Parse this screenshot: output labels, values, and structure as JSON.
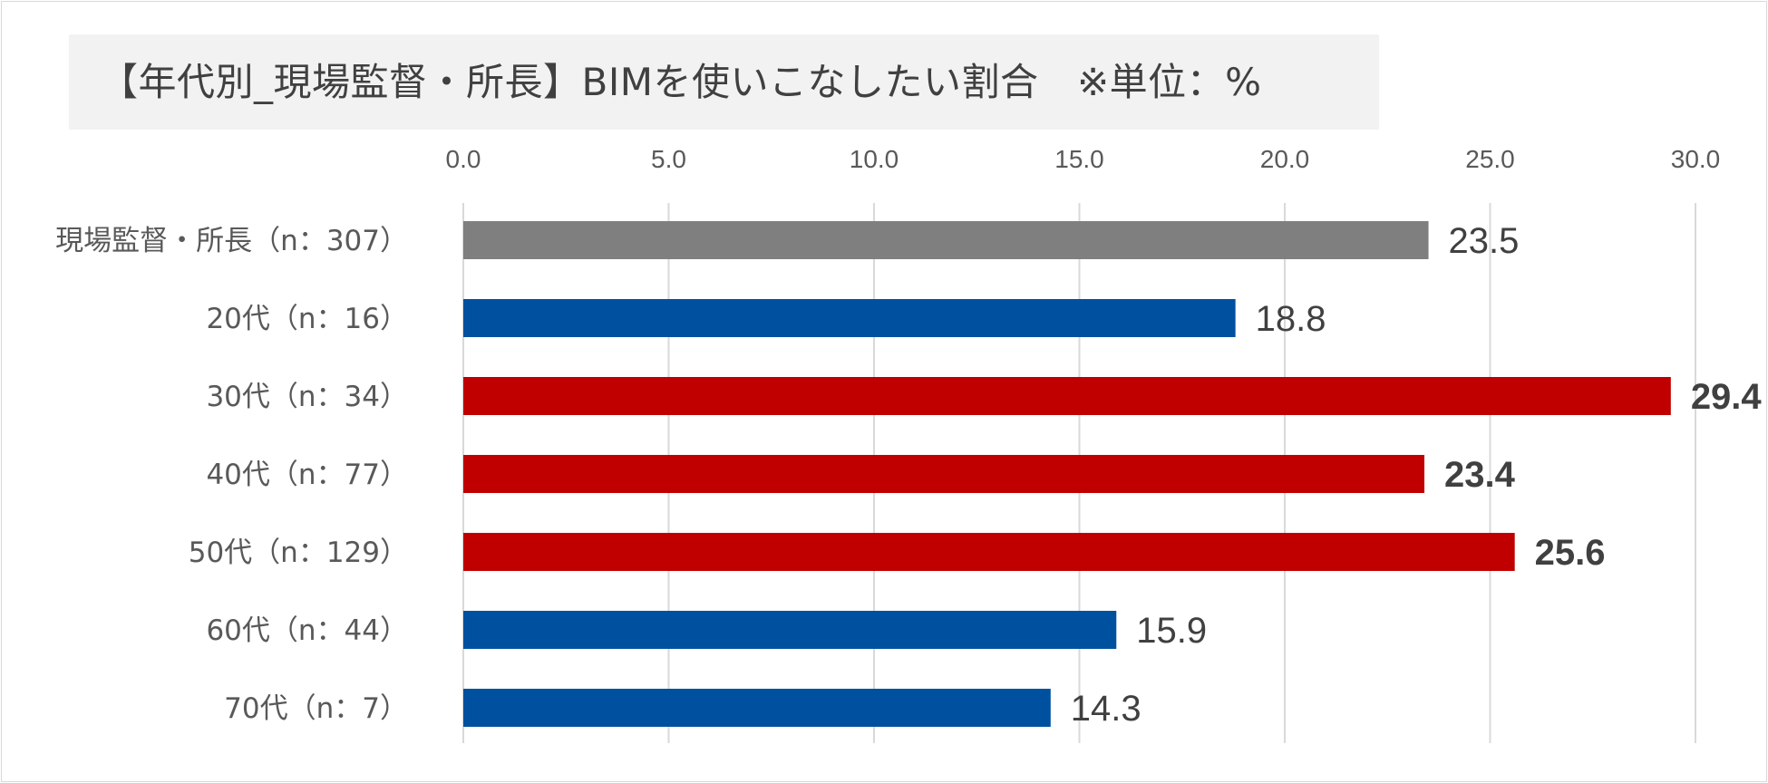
{
  "title": "【年代別_現場監督・所長】BIMを使いこなしたい割合　※単位：%",
  "chart_data": {
    "type": "bar",
    "orientation": "horizontal",
    "title": "【年代別_現場監督・所長】BIMを使いこなしたい割合　※単位：%",
    "categories": [
      "現場監督・所長（n：307）",
      "20代（n：16）",
      "30代（n：34）",
      "40代（n：77）",
      "50代（n：129）",
      "60代（n：44）",
      "70代（n：7）"
    ],
    "values": [
      23.5,
      18.8,
      29.4,
      23.4,
      25.6,
      15.9,
      14.3
    ],
    "value_labels": [
      "23.5",
      "18.8",
      "29.4",
      "23.4",
      "25.6",
      "15.9",
      "14.3"
    ],
    "bar_colors": [
      "#7f7f7f",
      "#0050a0",
      "#c00000",
      "#c00000",
      "#c00000",
      "#0050a0",
      "#0050a0"
    ],
    "label_colors": [
      "#404040",
      "#404040",
      "#c00000",
      "#c00000",
      "#c00000",
      "#404040",
      "#404040"
    ],
    "label_bold": [
      false,
      false,
      true,
      true,
      true,
      false,
      false
    ],
    "xlim": [
      0,
      30
    ],
    "ticks": [
      0,
      5,
      10,
      15,
      20,
      25,
      30
    ],
    "tick_labels": [
      "0.0",
      "5.0",
      "10.0",
      "15.0",
      "20.0",
      "25.0",
      "30.0"
    ],
    "x_axis_position": "top",
    "grid": true,
    "grid_color": "#d9d9d9",
    "legend": "none"
  }
}
